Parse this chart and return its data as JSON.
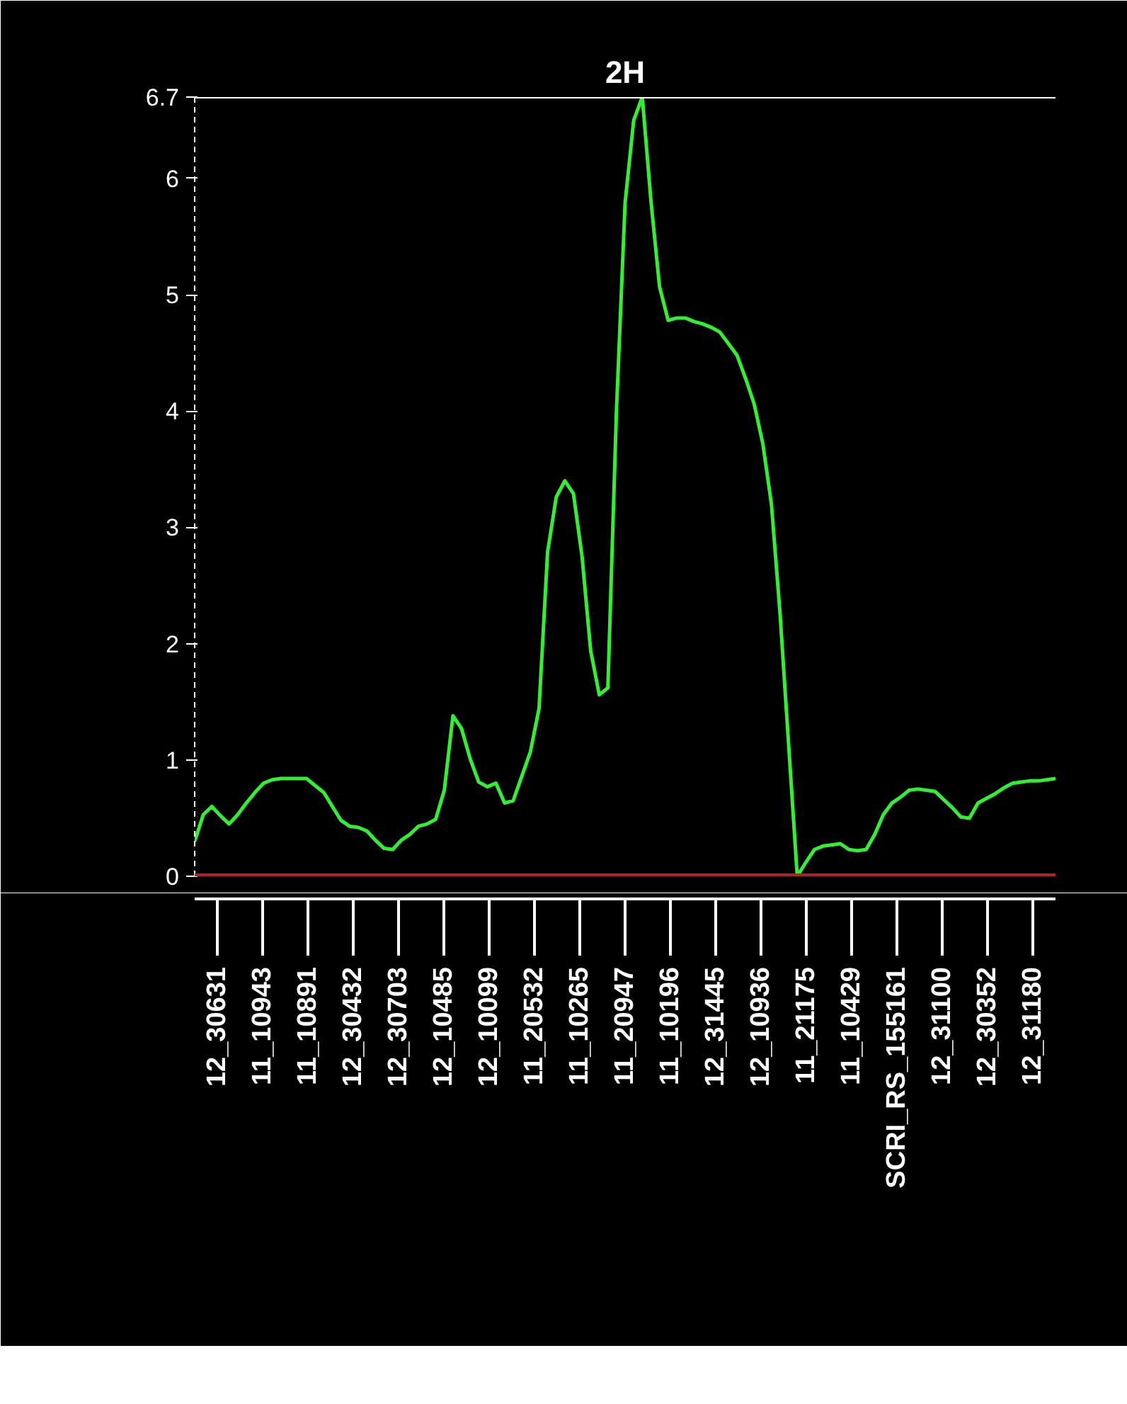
{
  "chart_data": {
    "type": "line",
    "title": "2H",
    "categories": [
      null,
      null,
      null,
      null,
      null,
      null,
      null,
      null,
      null,
      null,
      null,
      null,
      null,
      null,
      null,
      null,
      null,
      null,
      null,
      null,
      null,
      null,
      null,
      null,
      null,
      null,
      null,
      null,
      null,
      null,
      null,
      null,
      null,
      null,
      null,
      null,
      null,
      null,
      null,
      null,
      null,
      null,
      null,
      null,
      null,
      null,
      null,
      null,
      null,
      null,
      null,
      null,
      null,
      null,
      null,
      null,
      null,
      null,
      null,
      null,
      null,
      null,
      null,
      null,
      null,
      null,
      null,
      null,
      null,
      null,
      null,
      null,
      null,
      null,
      null,
      null,
      null,
      null,
      null,
      null,
      null,
      null,
      null,
      null,
      null,
      null,
      null,
      null,
      null,
      null,
      null,
      null,
      null,
      null,
      null,
      null,
      null,
      null,
      null,
      null,
      null
    ],
    "series": [
      {
        "color": "#33ee33",
        "values": [
          0.3,
          0.53,
          0.6,
          0.52,
          0.45,
          0.53,
          0.63,
          0.72,
          0.8,
          0.83,
          0.84,
          0.84,
          0.84,
          0.84,
          0.78,
          0.72,
          0.6,
          0.48,
          0.43,
          0.42,
          0.39,
          0.31,
          0.24,
          0.23,
          0.31,
          0.36,
          0.43,
          0.45,
          0.49,
          0.74,
          1.38,
          1.27,
          1.01,
          0.81,
          0.77,
          0.8,
          0.63,
          0.65,
          0.86,
          1.07,
          1.44,
          2.79,
          3.26,
          3.4,
          3.29,
          2.75,
          1.94,
          1.56,
          1.62,
          4.01,
          5.79,
          6.5,
          6.7,
          5.81,
          5.07,
          4.78,
          4.8,
          4.8,
          4.77,
          4.75,
          4.72,
          4.68,
          4.58,
          4.48,
          4.28,
          4.06,
          3.72,
          3.2,
          2.26,
          1.13,
          0.0,
          0.12,
          0.23,
          0.26,
          0.27,
          0.28,
          0.23,
          0.22,
          0.23,
          0.36,
          0.53,
          0.63,
          0.68,
          0.74,
          0.75,
          0.74,
          0.73,
          0.66,
          0.59,
          0.51,
          0.5,
          0.63,
          0.67,
          0.71,
          0.76,
          0.8,
          0.81,
          0.82,
          0.82,
          0.83,
          0.84
        ]
      }
    ],
    "ylim": [
      0,
      6.7
    ],
    "yticks": [
      0,
      1,
      2,
      3,
      4,
      5,
      6,
      6.7
    ],
    "tick_labels": "y",
    "grid": false,
    "ref_lines": [
      {
        "axis": "y",
        "value": 6.7,
        "color": "#ffffff"
      },
      {
        "axis": "y",
        "value": 0,
        "color": "#b22222"
      }
    ],
    "annotations": [
      "12_30631",
      "11_10943",
      "11_10891",
      "12_30432",
      "12_30703",
      "12_10485",
      "12_10099",
      "11_20532",
      "11_10265",
      "11_20947",
      "11_10196",
      "12_31445",
      "12_10936",
      "11_21175",
      "11_10429",
      "SCRI_RS_155161",
      "12_31100",
      "12_30352",
      "12_31180"
    ]
  }
}
